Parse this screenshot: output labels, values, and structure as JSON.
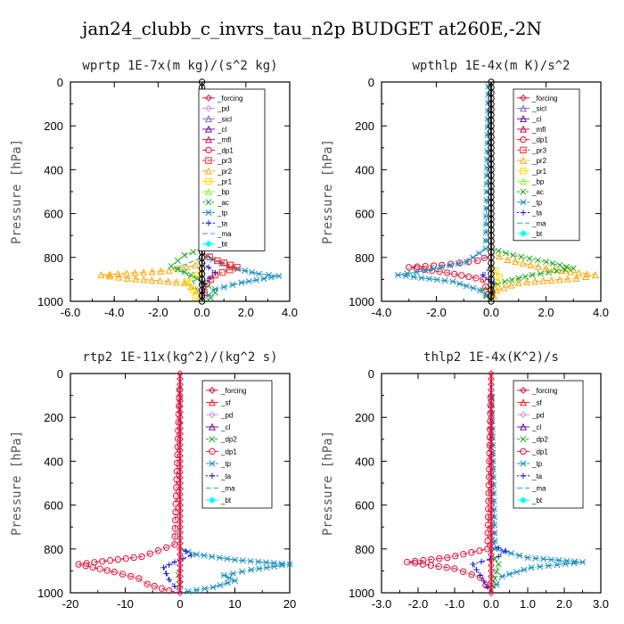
{
  "page": {
    "title": "jan24_clubb_c_invrs_tau_n2p  BUDGET at260E,-2N"
  },
  "colors": {
    "_forcing": "#e0143c",
    "_pd": "#c89be0",
    "_sicl": "#8a60c8",
    "_cl": "#6a0dad",
    "_mfl": "#c8105a",
    "_dp1": "#e0143c",
    "_pr3": "#ff2020",
    "_pr2": "#ffa500",
    "_pr1": "#ffd700",
    "_bp": "#90ee40",
    "_ac": "#22aa22",
    "_tp": "#1e90c0",
    "_ta": "#1010e0",
    "_ma": "#20b0b0",
    "_bt": "#00ffff",
    "_sf": "#ff2020",
    "_dp2": "#22aa22"
  },
  "chart_data": [
    {
      "type": "line",
      "title": "wprtp  1E-7x(m kg)/(s^2 kg)",
      "ylabel": "Pressure [hPa]",
      "xlim": [
        -6,
        4
      ],
      "ylim": [
        1000,
        0
      ],
      "xticks": [
        -6,
        -4,
        -2,
        0,
        2,
        4
      ],
      "xtick_labels": [
        "-6.0",
        "-4.0",
        "-2.0",
        "0.0",
        "2.0",
        "4.0"
      ],
      "yticks": [
        0,
        200,
        400,
        600,
        800,
        1000
      ],
      "ytick_labels": [
        "0",
        "200",
        "400",
        "600",
        "800",
        "1000"
      ],
      "legend": [
        "_forcing",
        "_pd",
        "_sicl",
        "_cl",
        "_mfl",
        "_dp1",
        "_pr3",
        "_pr2",
        "_pr1",
        "_bp",
        "_ac",
        "_tp",
        "_ta",
        "_ma",
        "_bt"
      ],
      "series": [
        {
          "name": "_pr2",
          "x": [
            0,
            0,
            -0.3,
            -1.5,
            -4.6,
            -3.4,
            -0.8,
            -0.2,
            0
          ],
          "y": [
            0,
            790,
            835,
            860,
            880,
            895,
            915,
            950,
            1000
          ]
        },
        {
          "name": "_pr1",
          "x": [
            0,
            0,
            -0.2,
            -0.7,
            -0.4,
            -0.3,
            0
          ],
          "y": [
            0,
            830,
            880,
            910,
            945,
            980,
            1000
          ]
        },
        {
          "name": "_tp",
          "x": [
            0,
            0,
            0.5,
            1.3,
            2.6,
            3.5,
            1.8,
            0.6,
            0
          ],
          "y": [
            0,
            780,
            810,
            845,
            875,
            885,
            915,
            945,
            1000
          ]
        },
        {
          "name": "_pr3",
          "x": [
            0,
            0,
            0.7,
            1.6,
            0.6,
            0.2,
            0
          ],
          "y": [
            0,
            780,
            815,
            845,
            880,
            920,
            1000
          ]
        },
        {
          "name": "_ac",
          "x": [
            0,
            0,
            -0.8,
            -1.4,
            -0.5,
            0.3,
            0.6,
            0.4,
            0
          ],
          "y": [
            0,
            760,
            790,
            840,
            880,
            930,
            960,
            985,
            1000
          ]
        },
        {
          "name": "_ta",
          "x": [
            0,
            0,
            0.6,
            0.1,
            0
          ],
          "y": [
            0,
            820,
            870,
            920,
            1000
          ]
        },
        {
          "name": "_ma",
          "x": [
            0,
            0,
            -1.2,
            -0.5,
            0
          ],
          "y": [
            0,
            800,
            850,
            890,
            1000
          ]
        },
        {
          "name": "_forcing",
          "x": [
            0,
            0
          ],
          "y": [
            0,
            1000
          ]
        }
      ]
    },
    {
      "type": "line",
      "title": "wpthlp  1E-4x(m K)/s^2",
      "ylabel": "Pressure [hPa]",
      "xlim": [
        -4,
        4
      ],
      "ylim": [
        1000,
        0
      ],
      "xticks": [
        -4,
        -2,
        0,
        2,
        4
      ],
      "xtick_labels": [
        "-4.0",
        "-2.0",
        "0.0",
        "2.0",
        "4.0"
      ],
      "yticks": [
        0,
        200,
        400,
        600,
        800,
        1000
      ],
      "ytick_labels": [
        "0",
        "200",
        "400",
        "600",
        "800",
        "1000"
      ],
      "legend": [
        "_forcing",
        "_sicl",
        "_cl",
        "_mfl",
        "_dp1",
        "_pr3",
        "_pr2",
        "_pr1",
        "_bp",
        "_ac",
        "_tp",
        "_ta",
        "_ma",
        "_bt"
      ],
      "series": [
        {
          "name": "_pr2",
          "x": [
            0,
            0,
            0.6,
            2.0,
            3.8,
            3.1,
            1.0,
            0.2,
            0
          ],
          "y": [
            0,
            780,
            810,
            850,
            880,
            895,
            915,
            950,
            1000
          ]
        },
        {
          "name": "_ac",
          "x": [
            0,
            0,
            0.8,
            2.0,
            3.0,
            1.5,
            0.5,
            -0.3,
            0
          ],
          "y": [
            0,
            760,
            790,
            820,
            850,
            880,
            910,
            950,
            1000
          ]
        },
        {
          "name": "_dp1",
          "x": [
            0,
            0,
            -0.5,
            -1.8,
            -3.0,
            -1.6,
            -0.3,
            0
          ],
          "y": [
            0,
            790,
            815,
            835,
            845,
            870,
            900,
            1000
          ]
        },
        {
          "name": "_tp",
          "x": [
            0,
            -0.1,
            -0.2,
            -0.9,
            -2.4,
            -3.4,
            -1.4,
            -0.4,
            0
          ],
          "y": [
            0,
            20,
            760,
            820,
            860,
            880,
            910,
            950,
            1000
          ]
        },
        {
          "name": "_pr1",
          "x": [
            0,
            0,
            0.3,
            0.1,
            0
          ],
          "y": [
            0,
            830,
            890,
            940,
            1000
          ]
        },
        {
          "name": "_ta",
          "x": [
            0,
            0,
            -0.3,
            0.1,
            0
          ],
          "y": [
            0,
            840,
            880,
            920,
            1000
          ]
        },
        {
          "name": "_forcing",
          "x": [
            0,
            0
          ],
          "y": [
            0,
            1000
          ]
        }
      ]
    },
    {
      "type": "line",
      "title": "rtp2  1E-11x(kg^2)/(kg^2 s)",
      "ylabel": "Pressure [hPa]",
      "xlim": [
        -20,
        20
      ],
      "ylim": [
        1000,
        0
      ],
      "xticks": [
        -20,
        -10,
        0,
        10,
        20
      ],
      "xtick_labels": [
        "-20",
        "-10",
        "0",
        "10",
        "20"
      ],
      "yticks": [
        0,
        200,
        400,
        600,
        800,
        1000
      ],
      "ytick_labels": [
        "0",
        "200",
        "400",
        "600",
        "800",
        "1000"
      ],
      "legend": [
        "_forcing",
        "_sf",
        "_pd",
        "_cl",
        "_dp2",
        "_dp1",
        "_tp",
        "_ta",
        "_ma",
        "_bt"
      ],
      "series": [
        {
          "name": "_dp1",
          "x": [
            0,
            -1,
            -7,
            -18.5,
            -12,
            -7.5,
            -6,
            -2,
            0
          ],
          "y": [
            0,
            780,
            835,
            870,
            905,
            935,
            960,
            990,
            1000
          ]
        },
        {
          "name": "_tp",
          "x": [
            0,
            0,
            3,
            10,
            20,
            13,
            8,
            10,
            6,
            0
          ],
          "y": [
            0,
            800,
            825,
            850,
            870,
            895,
            920,
            945,
            975,
            1000
          ]
        },
        {
          "name": "_ta",
          "x": [
            0,
            0,
            2,
            -1,
            -3,
            -2,
            0
          ],
          "y": [
            0,
            790,
            830,
            860,
            885,
            940,
            1000
          ]
        },
        {
          "name": "_dp2",
          "x": [
            0,
            0,
            -0.3,
            0
          ],
          "y": [
            0,
            880,
            920,
            1000
          ]
        },
        {
          "name": "_forcing",
          "x": [
            0,
            0
          ],
          "y": [
            0,
            1000
          ]
        }
      ]
    },
    {
      "type": "line",
      "title": "thlp2  1E-4x(K^2)/s",
      "ylabel": "Pressure [hPa]",
      "xlim": [
        -3,
        3
      ],
      "ylim": [
        1000,
        0
      ],
      "xticks": [
        -3,
        -2,
        -1,
        0,
        1,
        2,
        3
      ],
      "xtick_labels": [
        "-3.0",
        "-2.0",
        "-1.0",
        "0.0",
        "1.0",
        "2.0",
        "3.0"
      ],
      "yticks": [
        0,
        200,
        400,
        600,
        800,
        1000
      ],
      "ytick_labels": [
        "0",
        "200",
        "400",
        "600",
        "800",
        "1000"
      ],
      "legend": [
        "_forcing",
        "_sf",
        "_pd",
        "_cl",
        "_dp2",
        "_dp1",
        "_tp",
        "_ta",
        "_ma",
        "_bt"
      ],
      "series": [
        {
          "name": "_dp1",
          "x": [
            0,
            -0.1,
            -1.2,
            -2.3,
            -1.0,
            -0.3,
            0
          ],
          "y": [
            0,
            800,
            840,
            860,
            890,
            930,
            1000
          ]
        },
        {
          "name": "_tp",
          "x": [
            0,
            0.1,
            1.0,
            2.5,
            1.1,
            0.3,
            0
          ],
          "y": [
            0,
            800,
            840,
            860,
            885,
            925,
            1000
          ]
        },
        {
          "name": "_ta",
          "x": [
            0,
            0,
            0.4,
            0.2,
            -0.5,
            -0.3,
            0
          ],
          "y": [
            0,
            780,
            810,
            835,
            870,
            920,
            1000
          ]
        },
        {
          "name": "_dp2",
          "x": [
            0,
            0,
            0.2,
            0
          ],
          "y": [
            0,
            820,
            870,
            1000
          ]
        },
        {
          "name": "_forcing",
          "x": [
            0,
            0
          ],
          "y": [
            0,
            1000
          ]
        }
      ]
    }
  ]
}
